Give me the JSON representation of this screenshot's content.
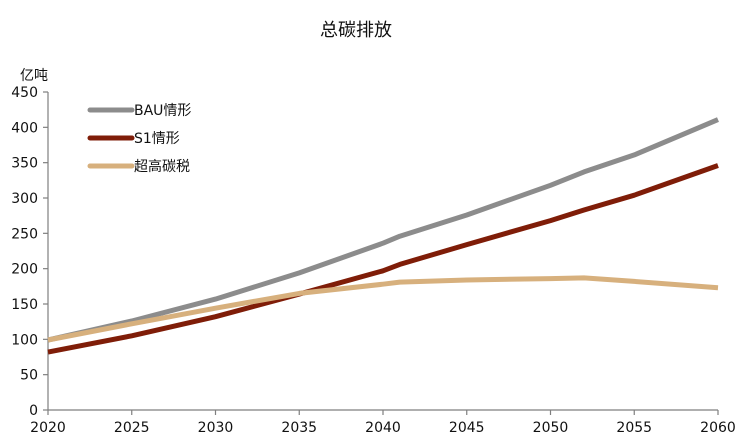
{
  "chart_data": {
    "type": "line",
    "title": "总碳排放",
    "ylabel": "亿吨",
    "xlabel": "",
    "xlim": [
      2020,
      2060
    ],
    "ylim": [
      0,
      450
    ],
    "x_ticks": [
      2020,
      2025,
      2030,
      2035,
      2040,
      2045,
      2050,
      2055,
      2060
    ],
    "y_ticks": [
      0,
      50,
      100,
      150,
      200,
      250,
      300,
      350,
      400,
      450
    ],
    "grid": false,
    "legend_position": "top-left",
    "series": [
      {
        "name": "BAU情形",
        "color": "#8c8c8c",
        "points": [
          [
            2020,
            99
          ],
          [
            2025,
            126
          ],
          [
            2030,
            157
          ],
          [
            2035,
            194
          ],
          [
            2040,
            236
          ],
          [
            2041,
            246
          ],
          [
            2045,
            276
          ],
          [
            2050,
            318
          ],
          [
            2052,
            337
          ],
          [
            2055,
            361
          ],
          [
            2060,
            411
          ]
        ]
      },
      {
        "name": "S1情形",
        "color": "#7f1d08",
        "points": [
          [
            2020,
            82
          ],
          [
            2025,
            105
          ],
          [
            2030,
            132
          ],
          [
            2035,
            164
          ],
          [
            2040,
            197
          ],
          [
            2041,
            206
          ],
          [
            2045,
            234
          ],
          [
            2050,
            268
          ],
          [
            2052,
            283
          ],
          [
            2055,
            304
          ],
          [
            2060,
            346
          ]
        ]
      },
      {
        "name": "超高碳税",
        "color": "#d7b07d",
        "points": [
          [
            2020,
            99
          ],
          [
            2025,
            122
          ],
          [
            2030,
            144
          ],
          [
            2035,
            165
          ],
          [
            2040,
            178
          ],
          [
            2041,
            181
          ],
          [
            2045,
            184
          ],
          [
            2050,
            186
          ],
          [
            2052,
            187
          ],
          [
            2055,
            182
          ],
          [
            2060,
            173
          ]
        ]
      }
    ]
  }
}
